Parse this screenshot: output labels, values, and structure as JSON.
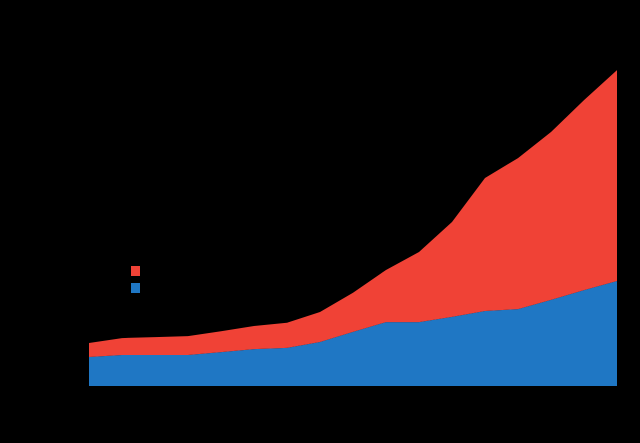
{
  "chart_data": {
    "type": "stacked-area",
    "categories": [
      null,
      null,
      null,
      null,
      null,
      null,
      null,
      null,
      null,
      null,
      null,
      null,
      null,
      null,
      null,
      null,
      null
    ],
    "series": [
      {
        "color": "#1f77c4",
        "values": [
          8.9,
          9.5,
          9.5,
          9.5,
          10.4,
          11.3,
          11.7,
          13.5,
          16.6,
          19.6,
          19.6,
          21.2,
          23.0,
          23.6,
          26.4,
          29.4,
          32.2
        ]
      },
      {
        "color": "#f04236",
        "values": [
          4.3,
          5.2,
          5.5,
          5.8,
          6.4,
          7.1,
          7.7,
          9.2,
          12.0,
          16.0,
          21.5,
          29.1,
          40.8,
          46.3,
          51.5,
          58.3,
          64.7
        ]
      }
    ],
    "ylim": [
      0,
      100
    ],
    "legend": "center left"
  }
}
